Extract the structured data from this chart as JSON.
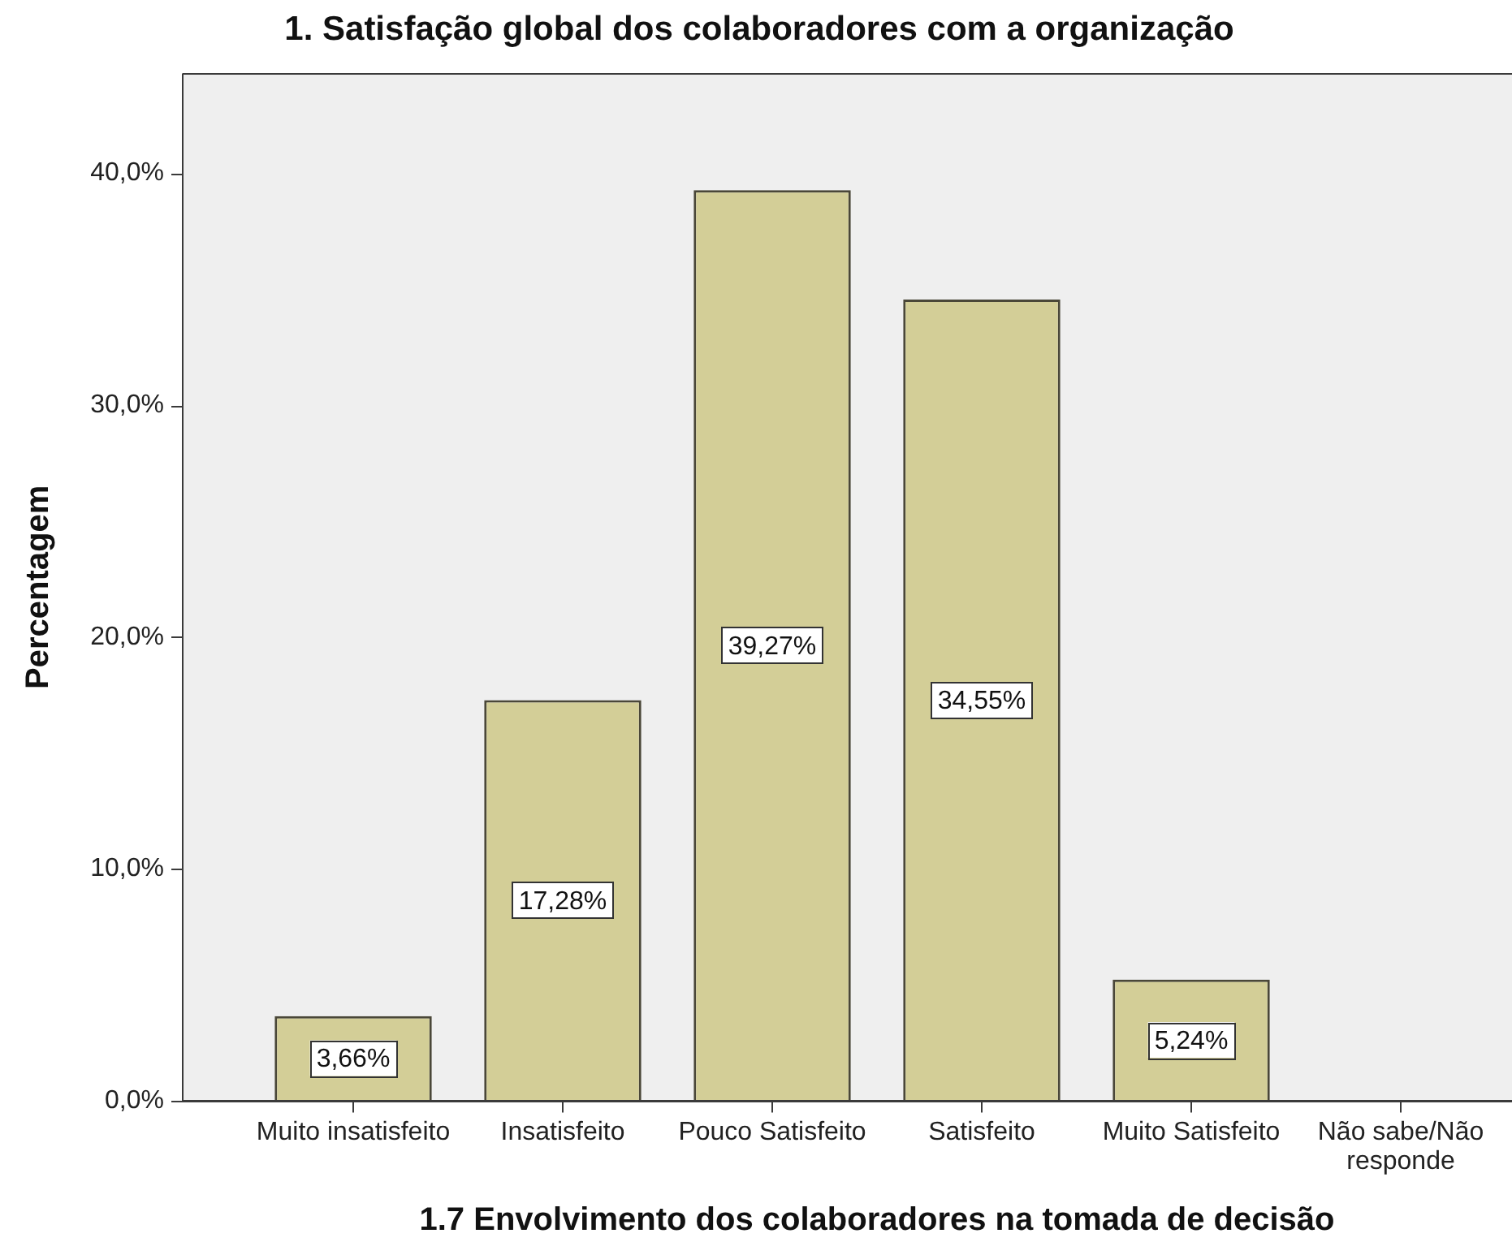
{
  "chart_data": {
    "type": "bar",
    "title": "1. Satisfação global dos colaboradores com a organização",
    "xlabel": "1.7 Envolvimento dos colaboradores na tomada de decisão",
    "ylabel": "Percentagem",
    "categories": [
      "Muito insatisfeito",
      "Insatisfeito",
      "Pouco Satisfeito",
      "Satisfeito",
      "Muito Satisfeito",
      "Não sabe/Não responde"
    ],
    "values": [
      3.66,
      17.28,
      39.27,
      34.55,
      5.24,
      0
    ],
    "value_labels": [
      "3,66%",
      "17,28%",
      "39,27%",
      "34,55%",
      "5,24%",
      null
    ],
    "color": "#d3ce97",
    "ylim": [
      0,
      44.3
    ],
    "yticks": [
      {
        "value": 0,
        "label": "0,0%"
      },
      {
        "value": 10,
        "label": "10,0%"
      },
      {
        "value": 20,
        "label": "20,0%"
      },
      {
        "value": 30,
        "label": "30,0%"
      },
      {
        "value": 40,
        "label": "40,0%"
      }
    ]
  }
}
